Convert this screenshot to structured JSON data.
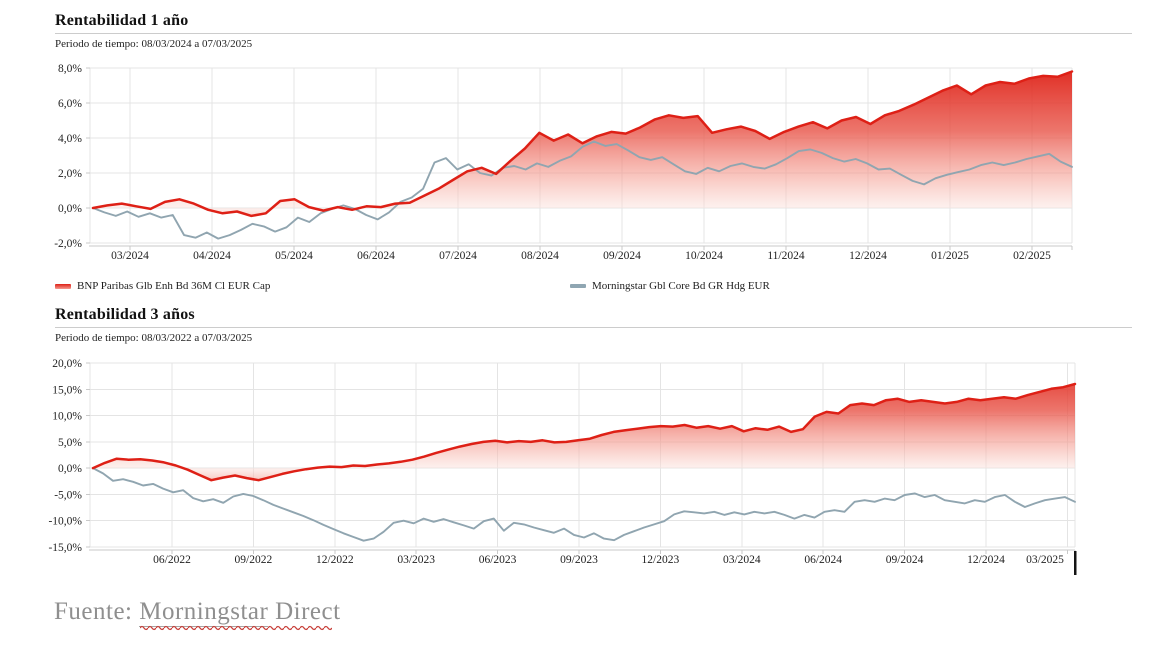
{
  "footer": {
    "prefix": "Fuente:",
    "word1": "Morningstar",
    "word2": "Direct"
  },
  "chart_data": [
    {
      "type": "area",
      "title": "Rentabilidad 1 año",
      "period": "Periodo de tiempo: 08/03/2024 a 07/03/2025",
      "ylim": [
        -2,
        8
      ],
      "grid": true,
      "legend_position": "below",
      "accent_color": "#de2016",
      "benchmark_color": "#90a5b0",
      "y_ticks": [
        {
          "label": "8,0%",
          "value": 8
        },
        {
          "label": "6,0%",
          "value": 6
        },
        {
          "label": "4,0%",
          "value": 4
        },
        {
          "label": "2,0%",
          "value": 2
        },
        {
          "label": "0,0%",
          "value": 0
        },
        {
          "label": "-2,0%",
          "value": -2
        }
      ],
      "x_ticks": [
        "03/2024",
        "04/2024",
        "05/2024",
        "06/2024",
        "07/2024",
        "08/2024",
        "09/2024",
        "10/2024",
        "11/2024",
        "12/2024",
        "01/2025",
        "02/2025"
      ],
      "series": [
        {
          "name": "BNP Paribas Glb Enh Bd 36M Cl EUR Cap",
          "color": "#de2016",
          "style": "area-line",
          "values": [
            0.0,
            0.15,
            0.25,
            0.1,
            -0.05,
            0.35,
            0.5,
            0.25,
            -0.1,
            -0.3,
            -0.2,
            -0.45,
            -0.3,
            0.4,
            0.5,
            0.05,
            -0.15,
            0.05,
            -0.1,
            0.1,
            0.05,
            0.25,
            0.3,
            0.7,
            1.1,
            1.6,
            2.1,
            2.3,
            1.95,
            2.7,
            3.4,
            4.3,
            3.85,
            4.2,
            3.7,
            4.1,
            4.35,
            4.25,
            4.6,
            5.05,
            5.3,
            5.15,
            5.25,
            4.3,
            4.5,
            4.65,
            4.4,
            3.95,
            4.35,
            4.65,
            4.9,
            4.55,
            5.0,
            5.2,
            4.8,
            5.3,
            5.55,
            5.9,
            6.3,
            6.7,
            7.0,
            6.5,
            7.0,
            7.2,
            7.1,
            7.4,
            7.55,
            7.5,
            7.8
          ]
        },
        {
          "name": "Morningstar Gbl Core Bd GR Hdg EUR",
          "color": "#90a5b0",
          "style": "line",
          "values": [
            0.0,
            -0.25,
            -0.45,
            -0.2,
            -0.5,
            -0.3,
            -0.55,
            -0.4,
            -1.55,
            -1.7,
            -1.4,
            -1.75,
            -1.55,
            -1.25,
            -0.9,
            -1.05,
            -1.35,
            -1.1,
            -0.55,
            -0.8,
            -0.3,
            -0.05,
            0.15,
            -0.05,
            -0.4,
            -0.65,
            -0.25,
            0.35,
            0.6,
            1.1,
            2.6,
            2.85,
            2.2,
            2.5,
            2.0,
            1.85,
            2.3,
            2.4,
            2.2,
            2.55,
            2.35,
            2.7,
            2.95,
            3.5,
            3.8,
            3.55,
            3.65,
            3.3,
            2.9,
            2.75,
            2.9,
            2.5,
            2.1,
            1.95,
            2.3,
            2.1,
            2.4,
            2.55,
            2.35,
            2.25,
            2.5,
            2.85,
            3.25,
            3.35,
            3.15,
            2.85,
            2.65,
            2.8,
            2.55,
            2.2,
            2.25,
            1.9,
            1.55,
            1.35,
            1.7,
            1.9,
            2.05,
            2.2,
            2.45,
            2.6,
            2.45,
            2.6,
            2.8,
            2.95,
            3.1,
            2.65,
            2.35
          ]
        }
      ]
    },
    {
      "type": "area",
      "title": "Rentabilidad 3 años",
      "period": "Periodo de tiempo: 08/03/2022 a 07/03/2025",
      "ylim": [
        -15,
        20
      ],
      "grid": true,
      "legend_position": "none",
      "accent_color": "#de2016",
      "benchmark_color": "#90a5b0",
      "y_ticks": [
        {
          "label": "20,0%",
          "value": 20
        },
        {
          "label": "15,0%",
          "value": 15
        },
        {
          "label": "10,0%",
          "value": 10
        },
        {
          "label": "5,0%",
          "value": 5
        },
        {
          "label": "0,0%",
          "value": 0
        },
        {
          "label": "-5,0%",
          "value": -5
        },
        {
          "label": "-10,0%",
          "value": -10
        },
        {
          "label": "-15,0%",
          "value": -15
        }
      ],
      "x_ticks": [
        "06/2022",
        "09/2022",
        "12/2022",
        "03/2023",
        "06/2023",
        "09/2023",
        "12/2023",
        "03/2024",
        "06/2024",
        "09/2024",
        "12/2024",
        "03/2025"
      ],
      "series": [
        {
          "name": "BNP Paribas Glb Enh Bd 36M Cl EUR Cap",
          "color": "#de2016",
          "style": "area-line",
          "values": [
            0.0,
            1.0,
            1.8,
            1.6,
            1.7,
            1.45,
            1.1,
            0.5,
            -0.3,
            -1.3,
            -2.3,
            -1.8,
            -1.4,
            -1.9,
            -2.3,
            -1.7,
            -1.1,
            -0.6,
            -0.2,
            0.1,
            0.3,
            0.2,
            0.5,
            0.4,
            0.7,
            0.9,
            1.2,
            1.6,
            2.2,
            2.9,
            3.5,
            4.1,
            4.6,
            5.0,
            5.2,
            4.9,
            5.15,
            5.0,
            5.3,
            4.9,
            5.0,
            5.3,
            5.6,
            6.3,
            6.9,
            7.2,
            7.5,
            7.8,
            8.0,
            7.9,
            8.2,
            7.7,
            8.0,
            7.5,
            8.0,
            7.0,
            7.6,
            7.3,
            7.9,
            6.9,
            7.4,
            9.8,
            10.7,
            10.4,
            12.0,
            12.3,
            12.0,
            12.9,
            13.2,
            12.6,
            12.9,
            12.6,
            12.3,
            12.6,
            13.2,
            12.9,
            13.2,
            13.5,
            13.2,
            13.9,
            14.5,
            15.1,
            15.4,
            16.0
          ]
        },
        {
          "name": "Morningstar Gbl Core Bd GR Hdg EUR",
          "color": "#90a5b0",
          "style": "line",
          "values": [
            0.0,
            -1.0,
            -2.4,
            -2.1,
            -2.6,
            -3.3,
            -3.0,
            -3.9,
            -4.6,
            -4.2,
            -5.7,
            -6.3,
            -5.9,
            -6.6,
            -5.4,
            -4.9,
            -5.3,
            -6.1,
            -7.0,
            -7.7,
            -8.4,
            -9.1,
            -9.9,
            -10.8,
            -11.6,
            -12.4,
            -13.1,
            -13.8,
            -13.4,
            -12.1,
            -10.4,
            -10.0,
            -10.5,
            -9.6,
            -10.2,
            -9.7,
            -10.3,
            -10.9,
            -11.5,
            -10.1,
            -9.6,
            -11.9,
            -10.4,
            -10.7,
            -11.3,
            -11.8,
            -12.3,
            -11.5,
            -12.7,
            -13.2,
            -12.4,
            -13.4,
            -13.7,
            -12.7,
            -12.0,
            -11.3,
            -10.7,
            -10.1,
            -8.8,
            -8.2,
            -8.4,
            -8.6,
            -8.3,
            -8.9,
            -8.4,
            -8.8,
            -8.3,
            -8.6,
            -8.3,
            -8.9,
            -9.6,
            -8.9,
            -9.4,
            -8.3,
            -8.0,
            -8.3,
            -6.4,
            -6.1,
            -6.4,
            -5.8,
            -6.1,
            -5.1,
            -4.8,
            -5.5,
            -5.1,
            -6.1,
            -6.4,
            -6.7,
            -6.1,
            -6.4,
            -5.5,
            -5.1,
            -6.4,
            -7.4,
            -6.7,
            -6.1,
            -5.8,
            -5.5,
            -6.4
          ]
        }
      ]
    }
  ]
}
